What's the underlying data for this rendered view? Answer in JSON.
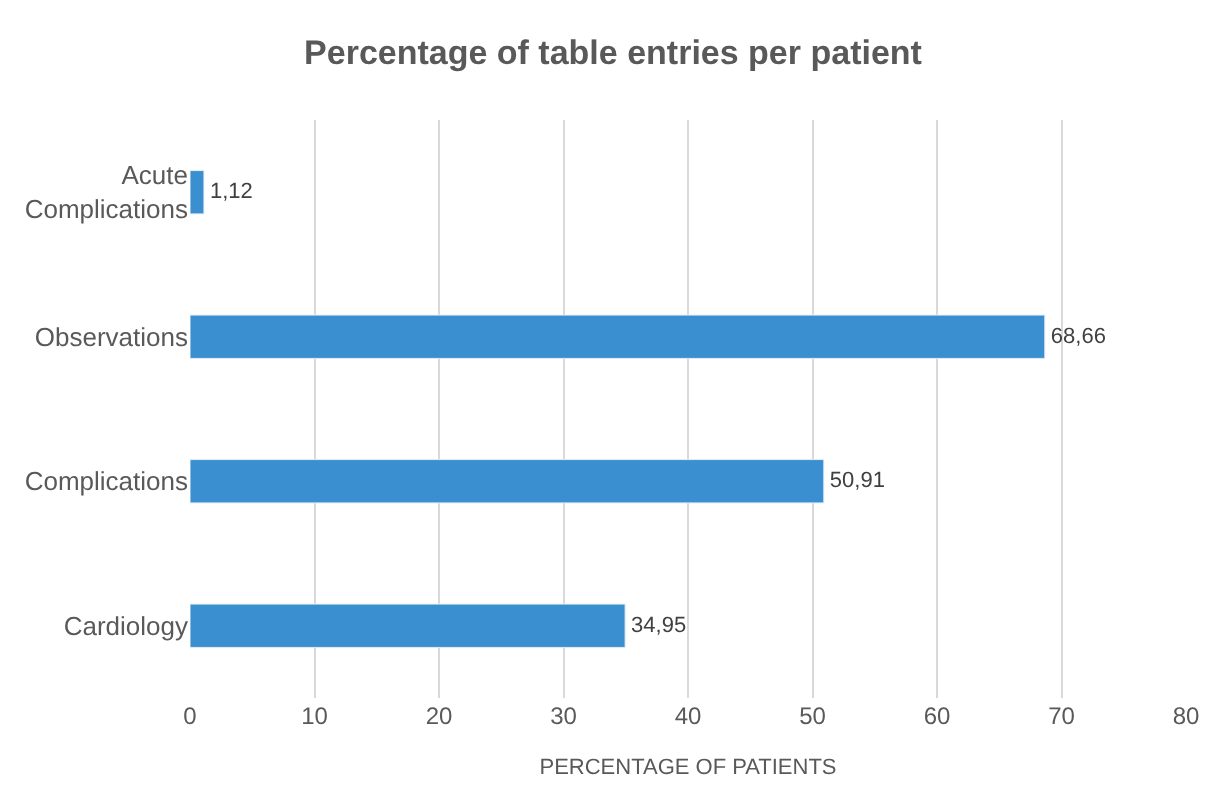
{
  "chart_data": {
    "type": "bar",
    "orientation": "horizontal",
    "title": "Percentage of table entries per patient",
    "xlabel": "PERCENTAGE OF PATIENTS",
    "categories": [
      "Acute Complications",
      "Observations",
      "Complications",
      "Cardiology"
    ],
    "values": [
      1.12,
      68.66,
      50.91,
      34.95
    ],
    "value_labels": [
      "1,12",
      "68,66",
      "50,91",
      "34,95"
    ],
    "color": "#3a8fd0",
    "xlim": [
      0,
      80
    ],
    "xticks": [
      0,
      10,
      20,
      30,
      40,
      50,
      60,
      70,
      80
    ],
    "grid": "x",
    "legend": false
  }
}
